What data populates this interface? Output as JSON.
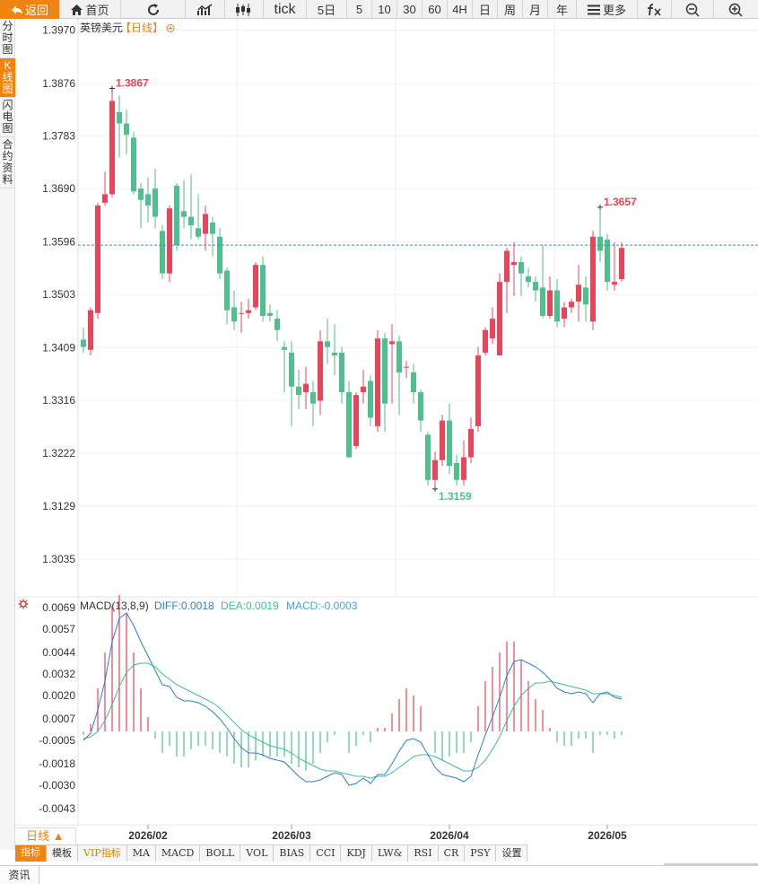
{
  "toolbar": {
    "back_label": "返回",
    "home_label": "首页",
    "tick_label": "tick",
    "periods": [
      "5日",
      "5",
      "10",
      "30",
      "60",
      "4H",
      "日",
      "周",
      "月",
      "年"
    ],
    "more_label": "更多"
  },
  "leftnav": {
    "items": [
      {
        "label": [
          "分",
          "时",
          "图"
        ]
      },
      {
        "label": [
          "K",
          "线",
          "图"
        ]
      },
      {
        "label": [
          "闪",
          "电",
          "图"
        ]
      },
      {
        "label": [
          "合",
          "约",
          "资",
          "料"
        ]
      }
    ]
  },
  "colors": {
    "up": "#e8445a",
    "down": "#4fbf8c",
    "accent": "#f08410",
    "diff": "#2b7fd6",
    "dea": "#3bbf9c"
  },
  "chart_data": [
    {
      "type": "candlestick",
      "title": "英镑美元",
      "period_tag": "【日线】",
      "y_ticks": [
        1.397,
        1.3876,
        1.3783,
        1.369,
        1.3596,
        1.3503,
        1.3409,
        1.3316,
        1.3222,
        1.3129,
        1.3035
      ],
      "y_tick_labels": [
        "1.3970",
        "1.3876",
        "1.3783",
        "1.3690",
        "1.3596",
        "1.3503",
        "1.3409",
        "1.3316",
        "1.3222",
        "1.3129",
        "1.3035"
      ],
      "ylim": [
        1.297,
        1.399
      ],
      "x_tick_labels": [
        "2026/02",
        "2026/03",
        "2026/04",
        "2026/05"
      ],
      "x_tick_index": [
        9,
        29,
        51,
        73
      ],
      "current_price": 1.359,
      "max_label": "1.3867",
      "min_label": "1.3159",
      "candles": [
        [
          1.3423,
          1.341,
          1.3445,
          1.34
        ],
        [
          1.3405,
          1.3475,
          1.348,
          1.3395
        ],
        [
          1.347,
          1.366,
          1.3665,
          1.346
        ],
        [
          1.3665,
          1.368,
          1.372,
          1.366
        ],
        [
          1.368,
          1.3845,
          1.3867,
          1.3675
        ],
        [
          1.3825,
          1.3805,
          1.3855,
          1.3745
        ],
        [
          1.3805,
          1.3785,
          1.383,
          1.375
        ],
        [
          1.378,
          1.3685,
          1.379,
          1.368
        ],
        [
          1.369,
          1.367,
          1.37,
          1.362
        ],
        [
          1.368,
          1.366,
          1.371,
          1.363
        ],
        [
          1.369,
          1.364,
          1.3725,
          1.362
        ],
        [
          1.3615,
          1.354,
          1.3625,
          1.353
        ],
        [
          1.354,
          1.3655,
          1.366,
          1.3525
        ],
        [
          1.3695,
          1.359,
          1.37,
          1.358
        ],
        [
          1.365,
          1.364,
          1.3705,
          1.362
        ],
        [
          1.364,
          1.3625,
          1.3715,
          1.36
        ],
        [
          1.362,
          1.3605,
          1.368,
          1.36
        ],
        [
          1.361,
          1.3645,
          1.366,
          1.358
        ],
        [
          1.363,
          1.361,
          1.364,
          1.357
        ],
        [
          1.3605,
          1.354,
          1.362,
          1.353
        ],
        [
          1.3545,
          1.3475,
          1.355,
          1.345
        ],
        [
          1.348,
          1.3455,
          1.351,
          1.344
        ],
        [
          1.347,
          1.347,
          1.349,
          1.3435
        ],
        [
          1.347,
          1.3475,
          1.3495,
          1.346
        ],
        [
          1.348,
          1.3555,
          1.356,
          1.3475
        ],
        [
          1.3555,
          1.3465,
          1.357,
          1.3455
        ],
        [
          1.347,
          1.3465,
          1.3485,
          1.3455
        ],
        [
          1.346,
          1.344,
          1.3475,
          1.342
        ],
        [
          1.341,
          1.3405,
          1.342,
          1.333
        ],
        [
          1.34,
          1.334,
          1.342,
          1.327
        ],
        [
          1.334,
          1.3325,
          1.337,
          1.33
        ],
        [
          1.333,
          1.3345,
          1.3375,
          1.33
        ],
        [
          1.333,
          1.331,
          1.335,
          1.327
        ],
        [
          1.3315,
          1.342,
          1.344,
          1.329
        ],
        [
          1.342,
          1.341,
          1.346,
          1.338
        ],
        [
          1.34,
          1.3395,
          1.345,
          1.336
        ],
        [
          1.34,
          1.333,
          1.341,
          1.331
        ],
        [
          1.333,
          1.3215,
          1.335,
          1.3215
        ],
        [
          1.3235,
          1.3325,
          1.333,
          1.323
        ],
        [
          1.333,
          1.334,
          1.337,
          1.331
        ],
        [
          1.335,
          1.3285,
          1.336,
          1.327
        ],
        [
          1.327,
          1.3425,
          1.344,
          1.326
        ],
        [
          1.3425,
          1.331,
          1.3435,
          1.326
        ],
        [
          1.3415,
          1.342,
          1.345,
          1.331
        ],
        [
          1.342,
          1.3365,
          1.343,
          1.329
        ],
        [
          1.3375,
          1.3375,
          1.3385,
          1.3355
        ],
        [
          1.3365,
          1.333,
          1.338,
          1.331
        ],
        [
          1.333,
          1.328,
          1.3335,
          1.326
        ],
        [
          1.3255,
          1.3175,
          1.326,
          1.3165
        ],
        [
          1.3175,
          1.321,
          1.3225,
          1.3159
        ],
        [
          1.321,
          1.328,
          1.329,
          1.32
        ],
        [
          1.328,
          1.32,
          1.331,
          1.3185
        ],
        [
          1.3205,
          1.3175,
          1.322,
          1.3165
        ],
        [
          1.3175,
          1.3215,
          1.3245,
          1.3165
        ],
        [
          1.3215,
          1.3265,
          1.3285,
          1.3205
        ],
        [
          1.327,
          1.3395,
          1.341,
          1.326
        ],
        [
          1.34,
          1.344,
          1.3445,
          1.3395
        ],
        [
          1.3425,
          1.346,
          1.348,
          1.3415
        ],
        [
          1.3395,
          1.3525,
          1.354,
          1.3395
        ],
        [
          1.3525,
          1.358,
          1.3585,
          1.347
        ],
        [
          1.3555,
          1.356,
          1.3595,
          1.35
        ],
        [
          1.356,
          1.354,
          1.357,
          1.35
        ],
        [
          1.3535,
          1.3525,
          1.355,
          1.3515
        ],
        [
          1.3525,
          1.351,
          1.3535,
          1.349
        ],
        [
          1.3515,
          1.3465,
          1.359,
          1.346
        ],
        [
          1.3465,
          1.351,
          1.3535,
          1.346
        ],
        [
          1.351,
          1.3455,
          1.353,
          1.3445
        ],
        [
          1.346,
          1.348,
          1.349,
          1.3445
        ],
        [
          1.348,
          1.349,
          1.3495,
          1.347
        ],
        [
          1.349,
          1.352,
          1.3555,
          1.3455
        ],
        [
          1.3515,
          1.3485,
          1.3535,
          1.3455
        ],
        [
          1.3455,
          1.3605,
          1.3615,
          1.344
        ],
        [
          1.3605,
          1.358,
          1.3657,
          1.356
        ],
        [
          1.36,
          1.3525,
          1.361,
          1.351
        ],
        [
          1.352,
          1.3525,
          1.3595,
          1.351
        ],
        [
          1.353,
          1.3585,
          1.3595,
          1.3525
        ]
      ]
    },
    {
      "type": "macd",
      "title": "MACD(13,8,9)",
      "diff_label": "DIFF:0.0018",
      "dea_label": "DEA:0.0019",
      "macd_label": "MACD:-0.0003",
      "y_ticks": [
        0.0069,
        0.0057,
        0.0044,
        0.0032,
        0.002,
        0.0007,
        -0.0005,
        -0.0018,
        -0.003,
        -0.0043
      ],
      "y_tick_labels": [
        "0.0069",
        "0.0057",
        "0.0044",
        "0.0032",
        "0.0020",
        "0.0007",
        "-0.0005",
        "-0.0018",
        "-0.0030",
        "-0.0043"
      ],
      "ylim": [
        -0.0048,
        0.0073
      ],
      "diff": [
        -0.0005,
        -0.0001,
        0.0012,
        0.0028,
        0.005,
        0.0063,
        0.0066,
        0.0059,
        0.005,
        0.0042,
        0.0034,
        0.0026,
        0.0025,
        0.0019,
        0.0017,
        0.0017,
        0.0016,
        0.0014,
        0.0011,
        0.0007,
        0.0002,
        -0.0004,
        -0.0009,
        -0.0012,
        -0.0012,
        -0.0013,
        -0.0015,
        -0.0016,
        -0.0017,
        -0.0021,
        -0.0025,
        -0.0028,
        -0.0028,
        -0.0027,
        -0.0025,
        -0.0023,
        -0.0024,
        -0.003,
        -0.0029,
        -0.0026,
        -0.0029,
        -0.0024,
        -0.0024,
        -0.0018,
        -0.0011,
        -0.0005,
        -0.0004,
        -0.0006,
        -0.0013,
        -0.002,
        -0.0024,
        -0.0025,
        -0.0026,
        -0.0028,
        -0.0025,
        -0.0013,
        -0.0002,
        0.0008,
        0.0019,
        0.0031,
        0.0039,
        0.004,
        0.0038,
        0.0036,
        0.0033,
        0.0029,
        0.0024,
        0.0022,
        0.0021,
        0.0022,
        0.0021,
        0.0016,
        0.0021,
        0.0022,
        0.0019,
        0.0018
      ],
      "dea": [
        -0.0004,
        -0.0003,
        0.0,
        0.0006,
        0.0015,
        0.0025,
        0.0033,
        0.0037,
        0.0038,
        0.0038,
        0.0036,
        0.0032,
        0.0029,
        0.0026,
        0.0024,
        0.0022,
        0.002,
        0.0018,
        0.0016,
        0.0013,
        0.0009,
        0.0005,
        0.0001,
        -0.0002,
        -0.0004,
        -0.0006,
        -0.0008,
        -0.0009,
        -0.001,
        -0.0012,
        -0.0015,
        -0.0017,
        -0.0019,
        -0.0021,
        -0.0022,
        -0.0022,
        -0.0023,
        -0.0024,
        -0.0025,
        -0.0025,
        -0.0026,
        -0.0025,
        -0.0025,
        -0.0023,
        -0.002,
        -0.0017,
        -0.0014,
        -0.0013,
        -0.0013,
        -0.0014,
        -0.0016,
        -0.0018,
        -0.002,
        -0.0022,
        -0.0022,
        -0.002,
        -0.0016,
        -0.001,
        -0.0003,
        0.0006,
        0.0014,
        0.002,
        0.0024,
        0.0027,
        0.0027,
        0.0028,
        0.0027,
        0.0026,
        0.0025,
        0.0024,
        0.0023,
        0.0021,
        0.0021,
        0.0021,
        0.002,
        0.0019
      ],
      "hist": [
        -0.0002,
        0.0004,
        0.0024,
        0.0044,
        0.007,
        0.0076,
        0.0066,
        0.0044,
        0.0024,
        0.0008,
        -0.0004,
        -0.0012,
        -0.0008,
        -0.0014,
        -0.0014,
        -0.001,
        -0.0008,
        -0.0008,
        -0.001,
        -0.0012,
        -0.0014,
        -0.0018,
        -0.002,
        -0.002,
        -0.0016,
        -0.0014,
        -0.0014,
        -0.0014,
        -0.0014,
        -0.0018,
        -0.002,
        -0.0022,
        -0.0018,
        -0.0012,
        -0.0006,
        -0.0002,
        0.0,
        -0.0012,
        -0.0008,
        -0.0002,
        -0.0006,
        0.0002,
        0.0002,
        0.001,
        0.0018,
        0.0024,
        0.002,
        0.0014,
        0.0,
        -0.0012,
        -0.0016,
        -0.0014,
        -0.0012,
        -0.0012,
        -0.0006,
        0.0014,
        0.0028,
        0.0036,
        0.0044,
        0.005,
        0.005,
        0.004,
        0.0028,
        0.0018,
        0.0012,
        0.0002,
        -0.0006,
        -0.0008,
        -0.0008,
        -0.0004,
        -0.0004,
        -0.0012,
        -0.0002,
        -0.0002,
        -0.0004,
        -0.0002
      ]
    }
  ],
  "period_label": "日线 ▲",
  "bottom_tabs": [
    "指标",
    "模板",
    "VIP指标",
    "MA",
    "MACD",
    "BOLL",
    "VOL",
    "BIAS",
    "CCI",
    "KDJ",
    "LW&",
    "RSI",
    "CR",
    "PSY",
    "设置"
  ],
  "news_tab": "资讯"
}
